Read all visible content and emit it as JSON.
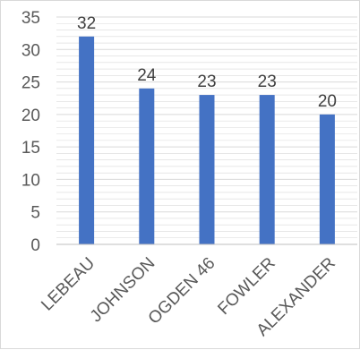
{
  "chart_data": {
    "type": "bar",
    "title": "",
    "xlabel": "",
    "ylabel": "",
    "categories": [
      "LEBEAU",
      "JOHNSON",
      "OGDEN 46",
      "FOWLER",
      "ALEXANDER"
    ],
    "values": [
      32,
      24,
      23,
      23,
      20
    ],
    "data_labels": [
      "32",
      "24",
      "23",
      "23",
      "20"
    ],
    "ylim": [
      0,
      35
    ],
    "yticks": [
      "0",
      "5",
      "10",
      "15",
      "20",
      "25",
      "30",
      "35"
    ],
    "grid": true,
    "legend": "none",
    "bar_color": "#4472c4",
    "grid_color": "#d9d9d9"
  }
}
